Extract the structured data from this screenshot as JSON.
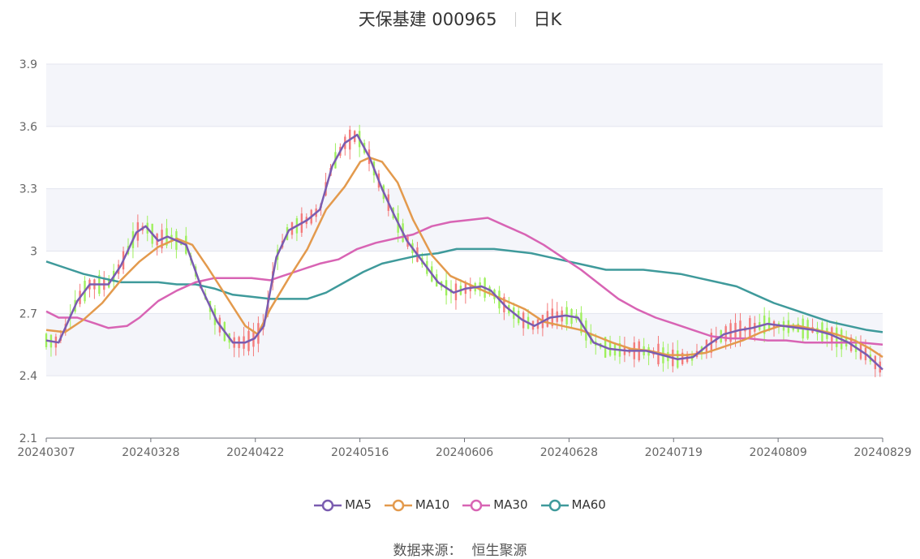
{
  "header": {
    "stock": "天保基建 000965",
    "period": "日K"
  },
  "source_label": "数据来源：",
  "source_value": "恒生聚源",
  "colors": {
    "up": "#f47a7a",
    "down": "#9ef05c",
    "MA5": "#7a5cb0",
    "MA10": "#e39a4d",
    "MA30": "#d864b4",
    "MA60": "#3f9a9b",
    "grid_band": "#f4f5fa",
    "grid_line": "#e3e5ef"
  },
  "chart_data": {
    "type": "candlestick",
    "ylim": [
      2.1,
      3.9
    ],
    "yticks": [
      "2.1",
      "2.4",
      "2.7",
      "3",
      "3.3",
      "3.6",
      "3.9"
    ],
    "xticks": [
      "20240307",
      "20240328",
      "20240422",
      "20240516",
      "20240606",
      "20240628",
      "20240719",
      "20240809",
      "20240829"
    ],
    "legend": [
      "MA5",
      "MA10",
      "MA30",
      "MA60"
    ],
    "ma": {
      "MA5": [
        [
          0,
          2.57
        ],
        [
          4,
          2.56
        ],
        [
          10,
          2.76
        ],
        [
          14,
          2.84
        ],
        [
          20,
          2.84
        ],
        [
          24,
          2.93
        ],
        [
          29,
          3.09
        ],
        [
          32,
          3.12
        ],
        [
          36,
          3.05
        ],
        [
          39,
          3.07
        ],
        [
          45,
          3.03
        ],
        [
          50,
          2.82
        ],
        [
          55,
          2.66
        ],
        [
          60,
          2.56
        ],
        [
          64,
          2.56
        ],
        [
          67,
          2.58
        ],
        [
          70,
          2.64
        ],
        [
          74,
          2.97
        ],
        [
          78,
          3.1
        ],
        [
          84,
          3.15
        ],
        [
          88,
          3.2
        ],
        [
          92,
          3.41
        ],
        [
          96,
          3.52
        ],
        [
          100,
          3.56
        ],
        [
          104,
          3.45
        ],
        [
          108,
          3.3
        ],
        [
          112,
          3.17
        ],
        [
          116,
          3.05
        ],
        [
          121,
          2.95
        ],
        [
          126,
          2.85
        ],
        [
          131,
          2.8
        ],
        [
          135,
          2.82
        ],
        [
          140,
          2.83
        ],
        [
          143,
          2.81
        ],
        [
          148,
          2.73
        ],
        [
          153,
          2.67
        ],
        [
          157,
          2.64
        ],
        [
          162,
          2.68
        ],
        [
          167,
          2.69
        ],
        [
          171,
          2.68
        ],
        [
          176,
          2.56
        ],
        [
          181,
          2.53
        ],
        [
          187,
          2.52
        ],
        [
          193,
          2.52
        ],
        [
          198,
          2.5
        ],
        [
          203,
          2.48
        ],
        [
          208,
          2.49
        ],
        [
          213,
          2.55
        ],
        [
          218,
          2.6
        ],
        [
          223,
          2.62
        ],
        [
          227,
          2.63
        ],
        [
          232,
          2.65
        ],
        [
          237,
          2.64
        ],
        [
          242,
          2.63
        ],
        [
          247,
          2.62
        ],
        [
          252,
          2.6
        ],
        [
          258,
          2.56
        ],
        [
          264,
          2.5
        ],
        [
          269,
          2.43
        ]
      ],
      "MA10": [
        [
          0,
          2.62
        ],
        [
          6,
          2.61
        ],
        [
          12,
          2.67
        ],
        [
          18,
          2.75
        ],
        [
          24,
          2.86
        ],
        [
          30,
          2.95
        ],
        [
          36,
          3.02
        ],
        [
          42,
          3.06
        ],
        [
          47,
          3.03
        ],
        [
          52,
          2.92
        ],
        [
          58,
          2.78
        ],
        [
          64,
          2.64
        ],
        [
          68,
          2.6
        ],
        [
          72,
          2.72
        ],
        [
          78,
          2.87
        ],
        [
          84,
          3.01
        ],
        [
          90,
          3.2
        ],
        [
          96,
          3.31
        ],
        [
          101,
          3.43
        ],
        [
          104,
          3.45
        ],
        [
          108,
          3.43
        ],
        [
          113,
          3.33
        ],
        [
          118,
          3.15
        ],
        [
          124,
          2.98
        ],
        [
          130,
          2.88
        ],
        [
          136,
          2.84
        ],
        [
          142,
          2.8
        ],
        [
          148,
          2.76
        ],
        [
          154,
          2.72
        ],
        [
          160,
          2.66
        ],
        [
          166,
          2.64
        ],
        [
          172,
          2.62
        ],
        [
          177,
          2.59
        ],
        [
          182,
          2.56
        ],
        [
          188,
          2.53
        ],
        [
          194,
          2.52
        ],
        [
          200,
          2.5
        ],
        [
          206,
          2.5
        ],
        [
          212,
          2.51
        ],
        [
          218,
          2.54
        ],
        [
          224,
          2.57
        ],
        [
          230,
          2.61
        ],
        [
          236,
          2.64
        ],
        [
          242,
          2.64
        ],
        [
          248,
          2.62
        ],
        [
          254,
          2.6
        ],
        [
          260,
          2.57
        ],
        [
          265,
          2.53
        ],
        [
          269,
          2.49
        ]
      ],
      "MA30": [
        [
          0,
          2.71
        ],
        [
          4,
          2.68
        ],
        [
          10,
          2.68
        ],
        [
          16,
          2.65
        ],
        [
          20,
          2.63
        ],
        [
          26,
          2.64
        ],
        [
          30,
          2.68
        ],
        [
          36,
          2.76
        ],
        [
          42,
          2.81
        ],
        [
          48,
          2.85
        ],
        [
          54,
          2.87
        ],
        [
          60,
          2.87
        ],
        [
          66,
          2.87
        ],
        [
          72,
          2.86
        ],
        [
          76,
          2.88
        ],
        [
          82,
          2.91
        ],
        [
          88,
          2.94
        ],
        [
          94,
          2.96
        ],
        [
          100,
          3.01
        ],
        [
          106,
          3.04
        ],
        [
          112,
          3.06
        ],
        [
          118,
          3.08
        ],
        [
          124,
          3.12
        ],
        [
          130,
          3.14
        ],
        [
          136,
          3.15
        ],
        [
          142,
          3.16
        ],
        [
          148,
          3.12
        ],
        [
          154,
          3.08
        ],
        [
          160,
          3.03
        ],
        [
          166,
          2.97
        ],
        [
          172,
          2.91
        ],
        [
          178,
          2.84
        ],
        [
          184,
          2.77
        ],
        [
          190,
          2.72
        ],
        [
          196,
          2.68
        ],
        [
          202,
          2.65
        ],
        [
          208,
          2.62
        ],
        [
          214,
          2.59
        ],
        [
          220,
          2.58
        ],
        [
          226,
          2.58
        ],
        [
          232,
          2.57
        ],
        [
          238,
          2.57
        ],
        [
          244,
          2.56
        ],
        [
          250,
          2.56
        ],
        [
          256,
          2.56
        ],
        [
          262,
          2.56
        ],
        [
          269,
          2.55
        ]
      ],
      "MA60": [
        [
          0,
          2.95
        ],
        [
          6,
          2.92
        ],
        [
          12,
          2.89
        ],
        [
          18,
          2.87
        ],
        [
          24,
          2.85
        ],
        [
          30,
          2.85
        ],
        [
          36,
          2.85
        ],
        [
          42,
          2.84
        ],
        [
          48,
          2.84
        ],
        [
          54,
          2.82
        ],
        [
          60,
          2.79
        ],
        [
          66,
          2.78
        ],
        [
          72,
          2.77
        ],
        [
          78,
          2.77
        ],
        [
          84,
          2.77
        ],
        [
          90,
          2.8
        ],
        [
          96,
          2.85
        ],
        [
          102,
          2.9
        ],
        [
          108,
          2.94
        ],
        [
          114,
          2.96
        ],
        [
          120,
          2.98
        ],
        [
          126,
          2.99
        ],
        [
          132,
          3.01
        ],
        [
          138,
          3.01
        ],
        [
          144,
          3.01
        ],
        [
          150,
          3.0
        ],
        [
          156,
          2.99
        ],
        [
          162,
          2.97
        ],
        [
          168,
          2.95
        ],
        [
          174,
          2.93
        ],
        [
          180,
          2.91
        ],
        [
          186,
          2.91
        ],
        [
          192,
          2.91
        ],
        [
          198,
          2.9
        ],
        [
          204,
          2.89
        ],
        [
          210,
          2.87
        ],
        [
          216,
          2.85
        ],
        [
          222,
          2.83
        ],
        [
          228,
          2.79
        ],
        [
          234,
          2.75
        ],
        [
          240,
          2.72
        ],
        [
          246,
          2.69
        ],
        [
          252,
          2.66
        ],
        [
          258,
          2.64
        ],
        [
          264,
          2.62
        ],
        [
          269,
          2.61
        ]
      ]
    }
  }
}
